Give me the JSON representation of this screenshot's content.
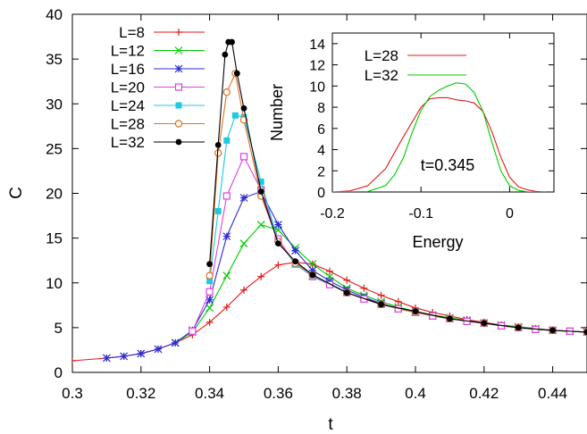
{
  "chart_data": [
    {
      "type": "line",
      "xlabel": "t",
      "ylabel": "C",
      "xlim": [
        0.3,
        0.45
      ],
      "ylim": [
        0,
        40
      ],
      "xticks": [
        "0.3",
        "0.32",
        "0.34",
        "0.36",
        "0.38",
        "0.4",
        "0.42",
        "0.44"
      ],
      "yticks": [
        "0",
        "5",
        "10",
        "15",
        "20",
        "25",
        "30",
        "35",
        "40"
      ],
      "grid": false,
      "legend_position": "top-left",
      "series": [
        {
          "name": "L=8",
          "color": "#e41a1c",
          "marker": "plus",
          "points": [
            [
              0.3,
              1.3
            ],
            [
              0.31,
              1.6
            ],
            [
              0.315,
              1.8
            ],
            [
              0.32,
              2.1
            ],
            [
              0.325,
              2.6
            ],
            [
              0.33,
              3.3
            ],
            [
              0.335,
              4.2
            ],
            [
              0.34,
              5.6
            ],
            [
              0.345,
              7.3
            ],
            [
              0.35,
              9.2
            ],
            [
              0.355,
              10.7
            ],
            [
              0.36,
              12.0
            ],
            [
              0.365,
              12.3
            ],
            [
              0.37,
              12.1
            ],
            [
              0.375,
              11.3
            ],
            [
              0.38,
              10.3
            ],
            [
              0.385,
              9.4
            ],
            [
              0.39,
              8.6
            ],
            [
              0.395,
              7.9
            ],
            [
              0.4,
              7.2
            ],
            [
              0.405,
              6.7
            ],
            [
              0.41,
              6.3
            ],
            [
              0.415,
              5.9
            ],
            [
              0.42,
              5.6
            ],
            [
              0.425,
              5.3
            ],
            [
              0.43,
              5.1
            ],
            [
              0.435,
              4.9
            ],
            [
              0.44,
              4.7
            ],
            [
              0.445,
              4.6
            ],
            [
              0.45,
              4.5
            ]
          ]
        },
        {
          "name": "L=12",
          "color": "#00cc00",
          "marker": "x",
          "points": [
            [
              0.33,
              3.3
            ],
            [
              0.335,
              4.5
            ],
            [
              0.34,
              7.2
            ],
            [
              0.345,
              10.8
            ],
            [
              0.35,
              14.4
            ],
            [
              0.355,
              16.5
            ],
            [
              0.36,
              15.9
            ],
            [
              0.365,
              13.9
            ],
            [
              0.37,
              12.1
            ],
            [
              0.375,
              10.7
            ],
            [
              0.38,
              9.4
            ],
            [
              0.385,
              8.6
            ],
            [
              0.39,
              7.9
            ],
            [
              0.395,
              7.3
            ],
            [
              0.4,
              6.8
            ],
            [
              0.405,
              6.4
            ],
            [
              0.41,
              6.1
            ],
            [
              0.415,
              5.8
            ],
            [
              0.42,
              5.5
            ],
            [
              0.425,
              5.3
            ],
            [
              0.43,
              5.1
            ],
            [
              0.435,
              4.9
            ],
            [
              0.44,
              4.7
            ],
            [
              0.445,
              4.6
            ],
            [
              0.45,
              4.5
            ]
          ]
        },
        {
          "name": "L=16",
          "color": "#2a2ad6",
          "marker": "asterisk",
          "points": [
            [
              0.31,
              1.6
            ],
            [
              0.315,
              1.8
            ],
            [
              0.32,
              2.1
            ],
            [
              0.325,
              2.6
            ],
            [
              0.33,
              3.3
            ],
            [
              0.335,
              4.7
            ],
            [
              0.34,
              8.1
            ],
            [
              0.345,
              15.2
            ],
            [
              0.35,
              19.5
            ],
            [
              0.355,
              20.2
            ],
            [
              0.36,
              16.5
            ],
            [
              0.365,
              13.6
            ],
            [
              0.37,
              11.4
            ],
            [
              0.375,
              10.2
            ],
            [
              0.38,
              9.2
            ],
            [
              0.385,
              8.4
            ],
            [
              0.39,
              7.7
            ],
            [
              0.395,
              7.1
            ],
            [
              0.4,
              6.7
            ],
            [
              0.405,
              6.3
            ],
            [
              0.41,
              6.0
            ],
            [
              0.415,
              5.8
            ],
            [
              0.42,
              5.5
            ],
            [
              0.425,
              5.2
            ],
            [
              0.43,
              5.0
            ],
            [
              0.435,
              4.8
            ],
            [
              0.44,
              4.7
            ],
            [
              0.445,
              4.6
            ],
            [
              0.45,
              4.5
            ]
          ]
        },
        {
          "name": "L=20",
          "color": "#e040e0",
          "marker": "open-square",
          "points": [
            [
              0.335,
              4.6
            ],
            [
              0.34,
              9.0
            ],
            [
              0.345,
              19.7
            ],
            [
              0.35,
              24.1
            ],
            [
              0.355,
              20.4
            ],
            [
              0.36,
              14.9
            ],
            [
              0.365,
              12.1
            ],
            [
              0.37,
              10.7
            ],
            [
              0.375,
              9.8
            ],
            [
              0.38,
              8.9
            ],
            [
              0.385,
              8.2
            ],
            [
              0.39,
              7.6
            ],
            [
              0.395,
              7.1
            ],
            [
              0.4,
              6.7
            ],
            [
              0.405,
              6.3
            ],
            [
              0.41,
              6.0
            ],
            [
              0.415,
              5.7
            ],
            [
              0.42,
              5.5
            ],
            [
              0.425,
              5.2
            ],
            [
              0.43,
              5.0
            ],
            [
              0.435,
              4.8
            ],
            [
              0.44,
              4.7
            ],
            [
              0.445,
              4.6
            ],
            [
              0.45,
              4.5
            ]
          ]
        },
        {
          "name": "L=24",
          "color": "#20c8e0",
          "marker": "filled-square",
          "points": [
            [
              0.34,
              10.2
            ],
            [
              0.3425,
              18.0
            ],
            [
              0.345,
              25.9
            ],
            [
              0.3475,
              28.7
            ],
            [
              0.35,
              28.5
            ],
            [
              0.355,
              21.3
            ],
            [
              0.36,
              14.6
            ],
            [
              0.365,
              12.1
            ],
            [
              0.37,
              10.8
            ],
            [
              0.38,
              8.9
            ],
            [
              0.39,
              7.6
            ],
            [
              0.4,
              6.7
            ],
            [
              0.41,
              6.0
            ],
            [
              0.42,
              5.5
            ],
            [
              0.43,
              5.0
            ],
            [
              0.44,
              4.7
            ],
            [
              0.45,
              4.5
            ]
          ]
        },
        {
          "name": "L=28",
          "color": "#e07020",
          "marker": "open-circle",
          "points": [
            [
              0.34,
              10.8
            ],
            [
              0.3425,
              24.5
            ],
            [
              0.345,
              31.3
            ],
            [
              0.3475,
              33.4
            ],
            [
              0.35,
              28.2
            ],
            [
              0.355,
              19.7
            ],
            [
              0.36,
              14.6
            ],
            [
              0.365,
              12.2
            ],
            [
              0.37,
              10.9
            ],
            [
              0.38,
              8.9
            ],
            [
              0.39,
              7.6
            ],
            [
              0.4,
              6.7
            ],
            [
              0.41,
              6.0
            ],
            [
              0.42,
              5.5
            ],
            [
              0.43,
              5.0
            ],
            [
              0.44,
              4.7
            ],
            [
              0.45,
              4.5
            ]
          ]
        },
        {
          "name": "L=32",
          "color": "#000000",
          "marker": "filled-circle",
          "points": [
            [
              0.34,
              12.1
            ],
            [
              0.3425,
              25.4
            ],
            [
              0.3445,
              35.5
            ],
            [
              0.3455,
              36.9
            ],
            [
              0.3465,
              36.9
            ],
            [
              0.348,
              33.4
            ],
            [
              0.35,
              29.5
            ],
            [
              0.355,
              20.2
            ],
            [
              0.36,
              14.4
            ],
            [
              0.365,
              12.4
            ],
            [
              0.37,
              10.9
            ],
            [
              0.38,
              8.9
            ],
            [
              0.39,
              7.6
            ],
            [
              0.4,
              6.8
            ],
            [
              0.41,
              6.0
            ],
            [
              0.42,
              5.5
            ],
            [
              0.43,
              5.0
            ],
            [
              0.44,
              4.7
            ],
            [
              0.45,
              4.5
            ]
          ]
        }
      ]
    },
    {
      "type": "line",
      "xlabel": "Energy",
      "ylabel": "Number",
      "xlim": [
        -0.2,
        0.05
      ],
      "ylim": [
        0,
        15
      ],
      "xticks": [
        "-0.2",
        "-0.1",
        "0"
      ],
      "yticks": [
        "0",
        "2",
        "4",
        "6",
        "8",
        "10",
        "12",
        "14"
      ],
      "annotation": "t=0.345",
      "legend_position": "top-left",
      "series": [
        {
          "name": "L=28",
          "color": "#e41a1c",
          "points": [
            [
              -0.2,
              0
            ],
            [
              -0.18,
              0.1
            ],
            [
              -0.16,
              0.6
            ],
            [
              -0.14,
              2.2
            ],
            [
              -0.12,
              5.2
            ],
            [
              -0.1,
              8.0
            ],
            [
              -0.09,
              8.8
            ],
            [
              -0.08,
              8.9
            ],
            [
              -0.07,
              8.9
            ],
            [
              -0.06,
              8.7
            ],
            [
              -0.05,
              8.6
            ],
            [
              -0.04,
              8.4
            ],
            [
              -0.03,
              7.6
            ],
            [
              -0.02,
              5.7
            ],
            [
              -0.01,
              3.3
            ],
            [
              0.0,
              1.4
            ],
            [
              0.01,
              0.5
            ],
            [
              0.02,
              0.2
            ],
            [
              0.03,
              0.05
            ],
            [
              0.04,
              0
            ]
          ]
        },
        {
          "name": "L=32",
          "color": "#00cc00",
          "points": [
            [
              -0.2,
              0
            ],
            [
              -0.16,
              0.05
            ],
            [
              -0.14,
              0.6
            ],
            [
              -0.13,
              1.6
            ],
            [
              -0.12,
              3.2
            ],
            [
              -0.11,
              5.6
            ],
            [
              -0.1,
              7.7
            ],
            [
              -0.09,
              9.0
            ],
            [
              -0.08,
              9.6
            ],
            [
              -0.07,
              10.0
            ],
            [
              -0.06,
              10.3
            ],
            [
              -0.05,
              10.2
            ],
            [
              -0.04,
              9.4
            ],
            [
              -0.03,
              7.6
            ],
            [
              -0.02,
              4.7
            ],
            [
              -0.01,
              2.0
            ],
            [
              0.0,
              0.6
            ],
            [
              0.01,
              0.15
            ],
            [
              0.02,
              0.02
            ],
            [
              0.03,
              0
            ]
          ]
        }
      ]
    }
  ]
}
